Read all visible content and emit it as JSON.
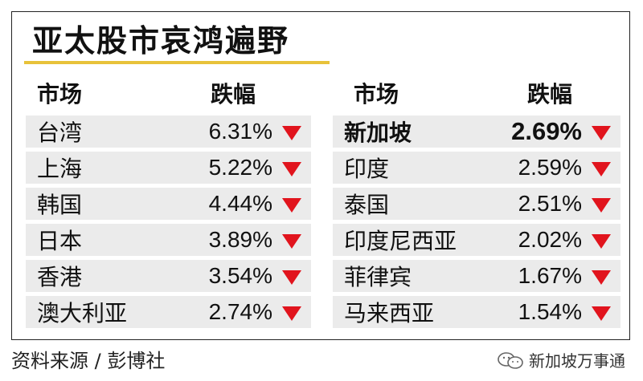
{
  "title": "亚太股市哀鸿遍野",
  "headers": {
    "market": "市场",
    "drop": "跌幅"
  },
  "left_rows": [
    {
      "market": "台湾",
      "pct": "6.31%"
    },
    {
      "market": "上海",
      "pct": "5.22%"
    },
    {
      "market": "韩国",
      "pct": "4.44%"
    },
    {
      "market": "日本",
      "pct": "3.89%"
    },
    {
      "market": "香港",
      "pct": "3.54%"
    },
    {
      "market": "澳大利亚",
      "pct": "2.74%"
    }
  ],
  "right_rows": [
    {
      "market": "新加坡",
      "pct": "2.69%"
    },
    {
      "market": "印度",
      "pct": "2.59%"
    },
    {
      "market": "泰国",
      "pct": "2.51%"
    },
    {
      "market": "印度尼西亚",
      "pct": "2.02%"
    },
    {
      "market": "菲律宾",
      "pct": "1.67%"
    },
    {
      "market": "马来西亚",
      "pct": "1.54%"
    }
  ],
  "highlighted_market": "新加坡",
  "source": "资料来源 / 彭博社",
  "watermark": "新加坡万事通",
  "colors": {
    "down_arrow": "#e1141d",
    "accent_underline": "#e8c23a",
    "row_bg": "#ebebeb"
  },
  "icons": {
    "row_indicator": "down-triangle-icon",
    "watermark": "wechat-icon"
  }
}
